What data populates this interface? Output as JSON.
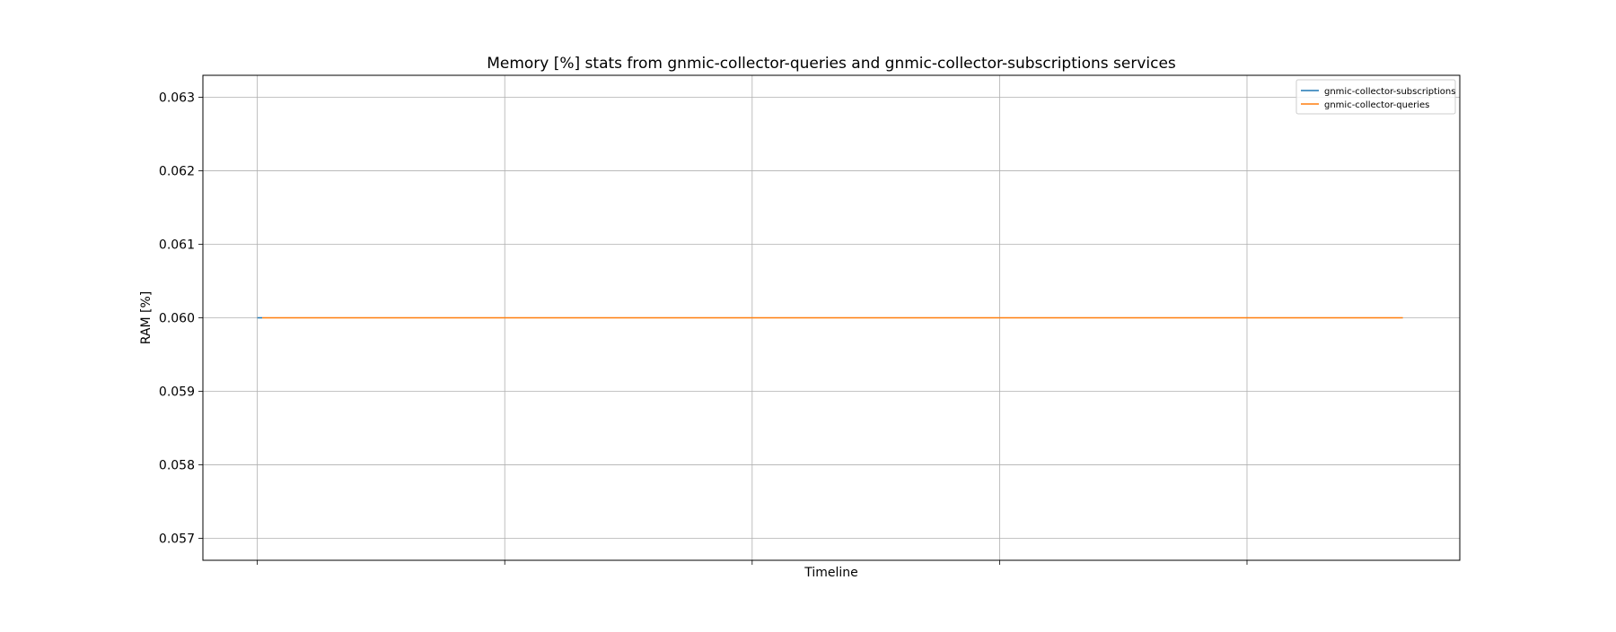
{
  "chart_data": {
    "type": "line",
    "title": "Memory [%] stats from gnmic-collector-queries and gnmic-collector-subscriptions services",
    "xlabel": "Timeline",
    "ylabel": "RAM [%]",
    "ylim": [
      0.0567,
      0.0633
    ],
    "yticks": [
      0.057,
      0.058,
      0.059,
      0.06,
      0.061,
      0.062,
      0.063
    ],
    "ytick_labels": [
      "0.057",
      "0.058",
      "0.059",
      "0.060",
      "0.061",
      "0.062",
      "0.063"
    ],
    "xlim": [
      -0.22,
      4.86
    ],
    "xticks": [
      0,
      1,
      2,
      3,
      4
    ],
    "xtick_labels": [],
    "grid": true,
    "legend_position": "top-right",
    "series": [
      {
        "name": "gnmic-collector-subscriptions",
        "color": "#1f77b4",
        "x": [
          0,
          0.02
        ],
        "y": [
          0.06,
          0.06
        ]
      },
      {
        "name": "gnmic-collector-queries",
        "color": "#ff7f0e",
        "x": [
          0.02,
          4.63
        ],
        "y": [
          0.06,
          0.06
        ]
      }
    ]
  }
}
